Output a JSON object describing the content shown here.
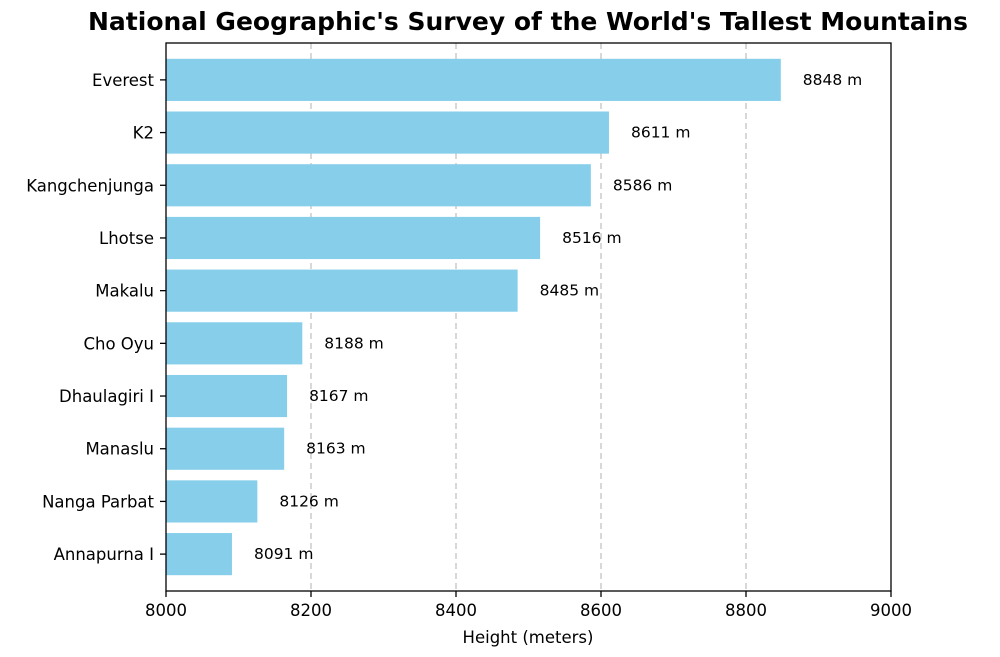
{
  "chart_data": {
    "type": "bar",
    "orientation": "horizontal",
    "title": "National Geographic's Survey of the World's Tallest Mountains",
    "xlabel": "Height (meters)",
    "ylabel": "",
    "xlim": [
      8000,
      9000
    ],
    "xticks": [
      8000,
      8200,
      8400,
      8600,
      8800,
      9000
    ],
    "grid": "x-dashed",
    "bar_color": "#87ceeb",
    "label_suffix": " m",
    "categories": [
      "Everest",
      "K2",
      "Kangchenjunga",
      "Lhotse",
      "Makalu",
      "Cho Oyu",
      "Dhaulagiri I",
      "Manaslu",
      "Nanga Parbat",
      "Annapurna I"
    ],
    "values": [
      8848,
      8611,
      8586,
      8516,
      8485,
      8188,
      8167,
      8163,
      8126,
      8091
    ]
  }
}
